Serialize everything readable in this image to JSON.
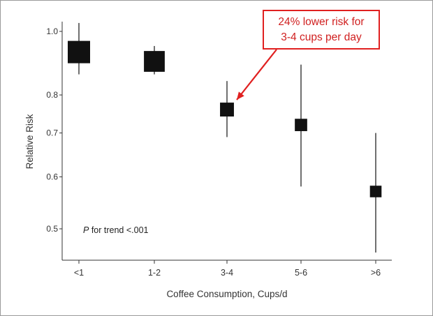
{
  "chart_data": {
    "type": "scatter",
    "subtype": "forest-plot",
    "xlabel": "Coffee Consumption, Cups/d",
    "ylabel": "Relative Risk",
    "y_scale": "log",
    "ylim": [
      0.45,
      1.1
    ],
    "yticks": [
      {
        "value": 1.0,
        "label": "1.0"
      },
      {
        "value": 0.8,
        "label": "0.8"
      },
      {
        "value": 0.7,
        "label": "0.7"
      },
      {
        "value": 0.6,
        "label": "0.6"
      },
      {
        "value": 0.5,
        "label": "0.5"
      }
    ],
    "categories": [
      "<1",
      "1-2",
      "3-4",
      "5-6",
      ">6"
    ],
    "points": [
      {
        "category": "<1",
        "rr": 0.93,
        "ci_low": 0.86,
        "ci_high": 1.03,
        "weight": 1.0
      },
      {
        "category": "1-2",
        "rr": 0.9,
        "ci_low": 0.86,
        "ci_high": 0.95,
        "weight": 0.9
      },
      {
        "category": "3-4",
        "rr": 0.76,
        "ci_low": 0.69,
        "ci_high": 0.84,
        "weight": 0.45
      },
      {
        "category": "5-6",
        "rr": 0.72,
        "ci_low": 0.58,
        "ci_high": 0.89,
        "weight": 0.35
      },
      {
        "category": ">6",
        "rr": 0.57,
        "ci_low": 0.46,
        "ci_high": 0.7,
        "weight": 0.3
      }
    ],
    "annotation_p": {
      "italic": "P",
      "rest": " for trend <.001"
    },
    "marker_color": "#111111"
  },
  "callout": {
    "line1": "24% lower risk for",
    "line2": "3-4 cups per day",
    "target_category": "3-4",
    "color": "#e02020"
  }
}
